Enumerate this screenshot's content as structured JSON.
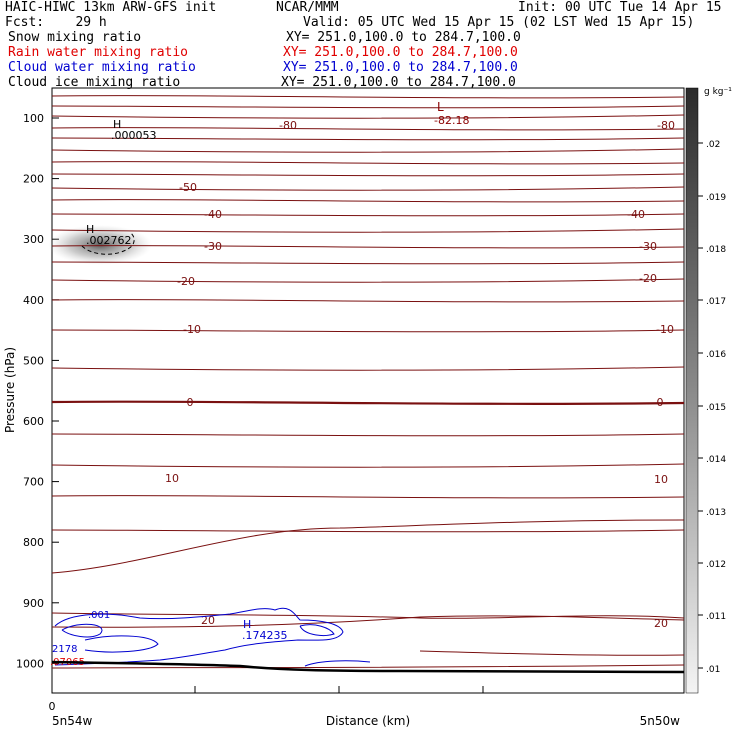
{
  "header": {
    "model": "HAIC-HIWC 13km ARW-GFS init",
    "org": "NCAR/MMM",
    "init": "Init: 00 UTC Tue 14 Apr 15",
    "fcst": "Fcst:    29 h",
    "valid": "Valid: 05 UTC Wed 15 Apr 15 (02 LST Wed 15 Apr 15)",
    "fields": [
      {
        "name": "Snow mixing ratio",
        "xy": "XY= 251.0,100.0 to 284.7,100.0",
        "color": "#000000"
      },
      {
        "name": "Rain water mixing ratio",
        "xy": "XY= 251.0,100.0 to 284.7,100.0",
        "color": "#e00000"
      },
      {
        "name": "Cloud water mixing ratio",
        "xy": "XY= 251.0,100.0 to 284.7,100.0",
        "color": "#0000d0"
      },
      {
        "name": "Cloud ice mixing ratio",
        "xy": "XY= 251.0,100.0 to 284.7,100.0",
        "color": "#000000"
      }
    ]
  },
  "chart_data": {
    "type": "contour",
    "ylabel": "Pressure (hPa)",
    "xlabel": "Distance (km)",
    "x_left_label": "5n54w",
    "x_right_label": "5n50w",
    "x_start_tick": "0",
    "yticks": [
      100,
      200,
      300,
      400,
      500,
      600,
      700,
      800,
      900,
      1000
    ],
    "ylim": [
      1050,
      80
    ],
    "colorbar": {
      "unit": "g kg⁻¹",
      "ticks": [
        ".02",
        ".019",
        ".018",
        ".017",
        ".016",
        ".015",
        ".014",
        ".013",
        ".012",
        ".011",
        ".01"
      ]
    },
    "temperature_labels": [
      "-80",
      "-80",
      "-82.18",
      "-50",
      "-40",
      "-40",
      "-30",
      "-30",
      "-20",
      "-20",
      "-10",
      "-10",
      "0",
      "0",
      "10",
      "10",
      "20",
      "20"
    ],
    "low_marker": {
      "symbol": "L",
      "value": "-82.18"
    },
    "highs": [
      {
        "symbol": "H",
        "value": ".000053",
        "color": "#000000"
      },
      {
        "symbol": "H",
        "value": ".002762",
        "color": "#000000"
      },
      {
        "symbol": "H",
        "value": ".174235",
        "color": "#0000d0"
      }
    ],
    "cloud_labels": [
      ".001",
      "2178",
      ".07065"
    ]
  }
}
